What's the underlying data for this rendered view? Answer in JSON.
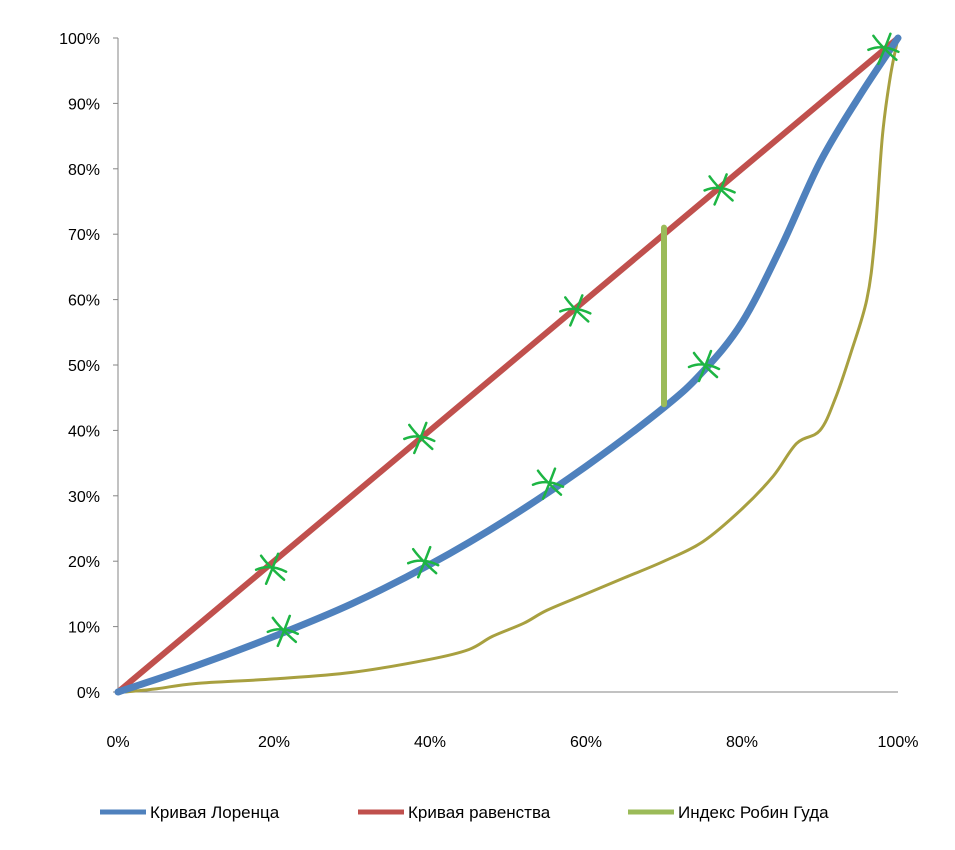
{
  "chart_data": {
    "type": "line",
    "title": "",
    "xlabel": "",
    "ylabel": "",
    "xlim": [
      0,
      100
    ],
    "ylim": [
      0,
      100
    ],
    "x_ticks": [
      "0%",
      "20%",
      "40%",
      "60%",
      "80%",
      "100%"
    ],
    "y_ticks": [
      "0%",
      "10%",
      "20%",
      "30%",
      "40%",
      "50%",
      "60%",
      "70%",
      "80%",
      "90%",
      "100%"
    ],
    "grid": false,
    "legend_position": "bottom",
    "series": [
      {
        "name": "Кривая Лоренца",
        "color": "#4f81bd",
        "x": [
          0,
          10,
          20,
          30,
          40,
          50,
          60,
          70,
          75,
          80,
          85,
          90,
          95,
          100
        ],
        "y": [
          0,
          4,
          8.5,
          13.5,
          19.5,
          26.5,
          34.5,
          43.5,
          49,
          56.5,
          68,
          81,
          91,
          100
        ]
      },
      {
        "name": "Кривая равенства",
        "color": "#c0504d",
        "x": [
          0,
          100
        ],
        "y": [
          0,
          100
        ]
      },
      {
        "name": "Индекс Робин Гуда",
        "color": "#9bbb59",
        "x": [
          70,
          70
        ],
        "y": [
          44,
          71
        ]
      }
    ],
    "annotations": [
      {
        "type": "freehand-curve",
        "color": "#a8a040",
        "x": [
          1,
          5,
          10,
          20,
          30,
          40,
          45,
          48,
          52,
          55,
          60,
          65,
          70,
          75,
          80,
          84,
          87,
          90,
          92,
          94,
          96,
          97,
          98,
          99,
          100
        ],
        "y": [
          0,
          0.5,
          1.3,
          2,
          3,
          5,
          6.5,
          8.5,
          10.5,
          12.5,
          15,
          17.5,
          20,
          23,
          28,
          33,
          38,
          40,
          45,
          52,
          60,
          69,
          85,
          94,
          100
        ]
      },
      {
        "type": "handwritten-marks",
        "color": "#1db543",
        "points": [
          {
            "x": 19.5,
            "y": 19
          },
          {
            "x": 21,
            "y": 9.5
          },
          {
            "x": 38.5,
            "y": 39
          },
          {
            "x": 39,
            "y": 20
          },
          {
            "x": 55,
            "y": 32
          },
          {
            "x": 58.5,
            "y": 58.5
          },
          {
            "x": 75,
            "y": 50
          },
          {
            "x": 77,
            "y": 77
          },
          {
            "x": 98,
            "y": 98.5
          }
        ]
      }
    ]
  }
}
